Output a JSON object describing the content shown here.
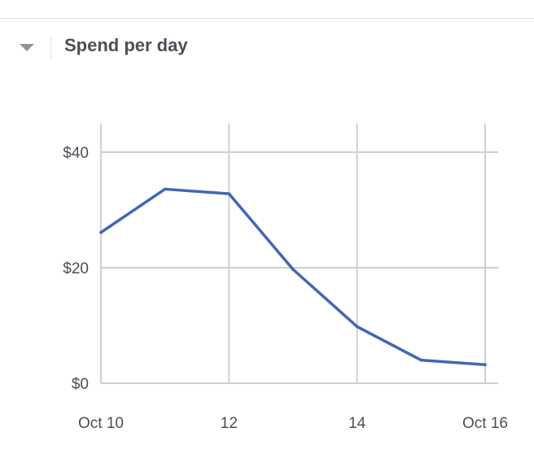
{
  "section": {
    "title": "Spend per day"
  },
  "colors": {
    "line": "#4267b2",
    "grid": "#ccd0d5",
    "text": "#4b4f56"
  },
  "chart_data": {
    "type": "line",
    "title": "Spend per day",
    "x": [
      10,
      11,
      12,
      13,
      14,
      15,
      16
    ],
    "x_tick_values": [
      10,
      12,
      14,
      16
    ],
    "x_tick_labels": [
      "Oct 10",
      "12",
      "14",
      "Oct 16"
    ],
    "y_ticks": [
      0,
      20,
      40
    ],
    "y_tick_labels": [
      "$0",
      "$20",
      "$40"
    ],
    "ylim": [
      0,
      45
    ],
    "xlabel": "",
    "ylabel": "",
    "series": [
      {
        "values": [
          26.1,
          33.6,
          32.8,
          19.7,
          9.8,
          4.0,
          3.2
        ]
      }
    ],
    "grid": true,
    "legend": "none"
  }
}
